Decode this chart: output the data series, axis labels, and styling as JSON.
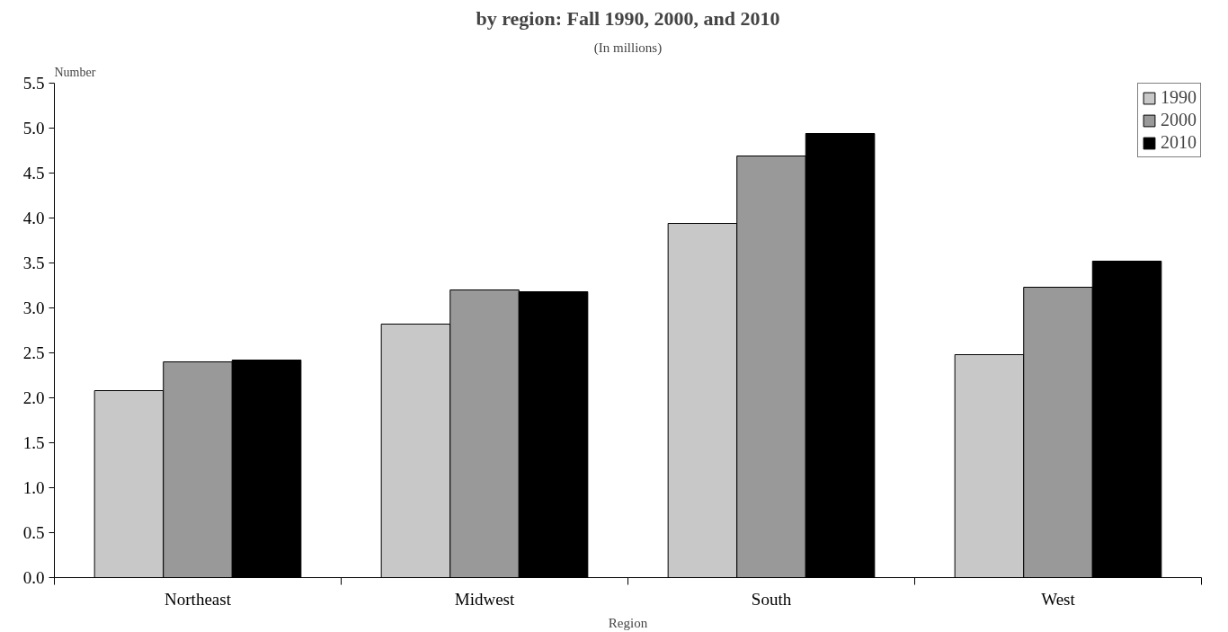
{
  "chart_data": {
    "type": "bar",
    "title": "by region: Fall 1990, 2000, and 2010",
    "subtitle": "(In millions)",
    "xlabel": "Region",
    "ylabel": "Number",
    "categories": [
      "Northeast",
      "Midwest",
      "South",
      "West"
    ],
    "series": [
      {
        "name": "1990",
        "color": "#c8c8c8",
        "values": [
          2.08,
          2.82,
          3.94,
          2.48
        ]
      },
      {
        "name": "2000",
        "color": "#999999",
        "values": [
          2.4,
          3.2,
          4.69,
          3.23
        ]
      },
      {
        "name": "2010",
        "color": "#000000",
        "values": [
          2.42,
          3.18,
          4.94,
          3.52
        ]
      }
    ],
    "ylim": [
      0,
      5.5
    ],
    "yticks": [
      {
        "value": 0,
        "label": "0.0"
      },
      {
        "value": 0.5,
        "label": "0.5"
      },
      {
        "value": 1,
        "label": "1.0"
      },
      {
        "value": 1.5,
        "label": "1.5"
      },
      {
        "value": 2,
        "label": "2.0"
      },
      {
        "value": 2.5,
        "label": "2.5"
      },
      {
        "value": 3,
        "label": "3.0"
      },
      {
        "value": 3.5,
        "label": "3.5"
      },
      {
        "value": 4,
        "label": "4.0"
      },
      {
        "value": 4.5,
        "label": "4.5"
      },
      {
        "value": 5,
        "label": "5.0"
      },
      {
        "value": 5.5,
        "label": "5.5"
      }
    ],
    "grid": false,
    "legend": "top right"
  }
}
